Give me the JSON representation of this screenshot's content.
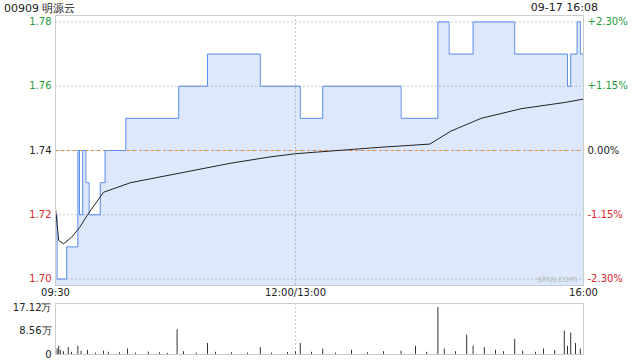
{
  "chart_data": [
    {
      "type": "line",
      "title": "00909 明源云",
      "subtitle": "09-17 16:08",
      "annotations": [
        "sina.com"
      ],
      "reference": 1.74,
      "xlim": [
        0,
        330
      ],
      "xticks": [
        {
          "value": 0,
          "label": "09:30"
        },
        {
          "value": 150,
          "label": "12:00/13:00"
        },
        {
          "value": 330,
          "label": "16:00"
        }
      ],
      "ylim": [
        1.698,
        1.782
      ],
      "yticks": [
        {
          "value": 1.7,
          "label": "1.70"
        },
        1.72,
        1.74,
        1.76,
        1.78
      ],
      "y2lim": [
        -2.414,
        2.414
      ],
      "y2ticks": [
        {
          "value": -2.3,
          "label": "-2.30%"
        },
        {
          "value": -1.15,
          "label": "-1.15%"
        },
        {
          "value": 0,
          "label": "0.00%"
        },
        {
          "value": 1.15,
          "label": "+1.15%"
        },
        {
          "value": 2.3,
          "label": "+2.30%"
        }
      ],
      "grid": true,
      "series": [
        {
          "color": "#5b8def",
          "line_style": "step",
          "x": [
            0,
            1,
            7,
            14,
            15,
            17,
            19,
            21,
            28,
            31,
            44,
            77,
            95,
            128,
            153,
            167,
            216,
            239,
            246,
            261,
            287,
            320,
            322,
            326,
            328,
            330
          ],
          "values": [
            1.72,
            1.7,
            1.71,
            1.74,
            1.72,
            1.74,
            1.73,
            1.72,
            1.73,
            1.74,
            1.75,
            1.76,
            1.77,
            1.76,
            1.75,
            1.76,
            1.75,
            1.78,
            1.77,
            1.78,
            1.77,
            1.76,
            1.77,
            1.78,
            1.77,
            1.77
          ]
        },
        {
          "color": "#222222",
          "line_style": "solid",
          "x": [
            0,
            2,
            5,
            10,
            15,
            20,
            30,
            47,
            78,
            109,
            134,
            150,
            203,
            234,
            247,
            266,
            291,
            319,
            330
          ],
          "values": [
            1.722,
            1.712,
            1.711,
            1.713,
            1.716,
            1.72,
            1.727,
            1.73,
            1.733,
            1.736,
            1.738,
            1.739,
            1.741,
            1.742,
            1.746,
            1.75,
            1.753,
            1.755,
            1.756
          ]
        }
      ]
    },
    {
      "type": "bar",
      "color": "#333333",
      "tick_labels": "y",
      "grid": true,
      "xlim": [
        0,
        330
      ],
      "xticks": [
        {
          "value": 0,
          "label": "09:30"
        },
        {
          "value": 150,
          "label": "12:00/13:00"
        },
        {
          "value": 330,
          "label": "16:00"
        }
      ],
      "ylim": [
        0,
        185000
      ],
      "yticks": [
        0,
        {
          "value": 85600,
          "label": "8.56万"
        },
        {
          "value": 171200,
          "label": "17.12万"
        }
      ],
      "x": [
        0,
        1,
        2,
        3,
        5,
        8,
        10,
        14,
        16,
        20,
        25,
        30,
        33,
        40,
        45,
        50,
        58,
        65,
        70,
        76,
        80,
        88,
        95,
        100,
        110,
        120,
        128,
        135,
        145,
        150,
        153,
        160,
        167,
        175,
        185,
        195,
        205,
        216,
        225,
        232,
        239,
        243,
        250,
        257,
        261,
        268,
        275,
        280,
        287,
        292,
        300,
        305,
        312,
        318,
        320,
        322,
        325,
        328,
        330
      ],
      "values": [
        40000,
        20000,
        30000,
        15000,
        10000,
        25000,
        8000,
        30000,
        12000,
        15000,
        5000,
        12000,
        8000,
        6000,
        20000,
        5000,
        9000,
        6000,
        4000,
        90000,
        10000,
        5000,
        40000,
        8000,
        6000,
        5000,
        25000,
        5000,
        7000,
        10000,
        40000,
        8000,
        20000,
        5000,
        15000,
        6000,
        10000,
        12000,
        30000,
        8000,
        170000,
        20000,
        10000,
        70000,
        30000,
        25000,
        15000,
        10000,
        55000,
        12000,
        8000,
        20000,
        15000,
        85000,
        30000,
        78000,
        40000,
        20000,
        15000
      ]
    }
  ]
}
